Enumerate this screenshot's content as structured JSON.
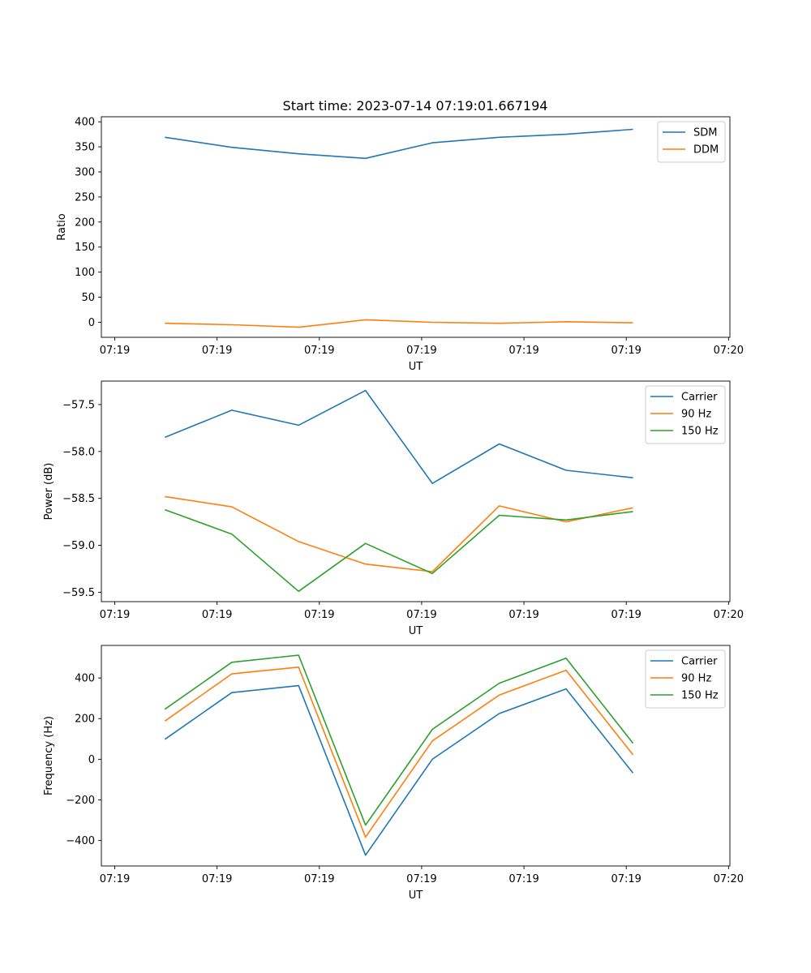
{
  "chart_data": {
    "title": "Start time: 2023-07-14 07:19:01.667194",
    "xtick_labels": [
      "07:19",
      "07:19",
      "07:19",
      "07:19",
      "07:19",
      "07:19",
      "07:20"
    ],
    "panels": [
      {
        "type": "line",
        "xlabel": "UT",
        "ylabel": "Ratio",
        "ylim": [
          -30,
          410
        ],
        "yticks": [
          0,
          50,
          100,
          150,
          200,
          250,
          300,
          350,
          400
        ],
        "ytick_labels": [
          "0",
          "50",
          "100",
          "150",
          "200",
          "250",
          "300",
          "350",
          "400"
        ],
        "legend": "top-right",
        "series": [
          {
            "name": "SDM",
            "color": "#1f77b4",
            "values": [
              369,
              349,
              336,
              327,
              358,
              369,
              375,
              385
            ]
          },
          {
            "name": "DDM",
            "color": "#ff7f0e",
            "values": [
              -2,
              -5,
              -10,
              5,
              0,
              -2,
              1,
              -1
            ]
          }
        ]
      },
      {
        "type": "line",
        "xlabel": "UT",
        "ylabel": "Power (dB)",
        "ylim": [
          -59.6,
          -57.25
        ],
        "yticks": [
          -59.5,
          -59.0,
          -58.5,
          -58.0,
          -57.5
        ],
        "ytick_labels": [
          "−59.5",
          "−59.0",
          "−58.5",
          "−58.0",
          "−57.5"
        ],
        "legend": "top-right",
        "series": [
          {
            "name": "Carrier",
            "color": "#1f77b4",
            "values": [
              -57.85,
              -57.56,
              -57.72,
              -57.35,
              -58.34,
              -57.92,
              -58.2,
              -58.28
            ]
          },
          {
            "name": "90 Hz",
            "color": "#ff7f0e",
            "values": [
              -58.48,
              -58.59,
              -58.96,
              -59.2,
              -59.28,
              -58.58,
              -58.75,
              -58.6
            ]
          },
          {
            "name": "150 Hz",
            "color": "#2ca02c",
            "values": [
              -58.62,
              -58.88,
              -59.49,
              -58.98,
              -59.3,
              -58.68,
              -58.73,
              -58.64
            ]
          }
        ]
      },
      {
        "type": "line",
        "xlabel": "UT",
        "ylabel": "Frequency (Hz)",
        "ylim": [
          -525,
          560
        ],
        "yticks": [
          -400,
          -200,
          0,
          200,
          400
        ],
        "ytick_labels": [
          "−400",
          "−200",
          "0",
          "200",
          "400"
        ],
        "legend": "top-right",
        "series": [
          {
            "name": "Carrier",
            "color": "#1f77b4",
            "values": [
              98,
              328,
              362,
              -472,
              0,
              225,
              346,
              -68
            ]
          },
          {
            "name": "90 Hz",
            "color": "#ff7f0e",
            "values": [
              188,
              420,
              453,
              -383,
              90,
              316,
              438,
              22
            ]
          },
          {
            "name": "150 Hz",
            "color": "#2ca02c",
            "values": [
              246,
              477,
              512,
              -324,
              147,
              374,
              497,
              79
            ]
          }
        ]
      }
    ]
  }
}
